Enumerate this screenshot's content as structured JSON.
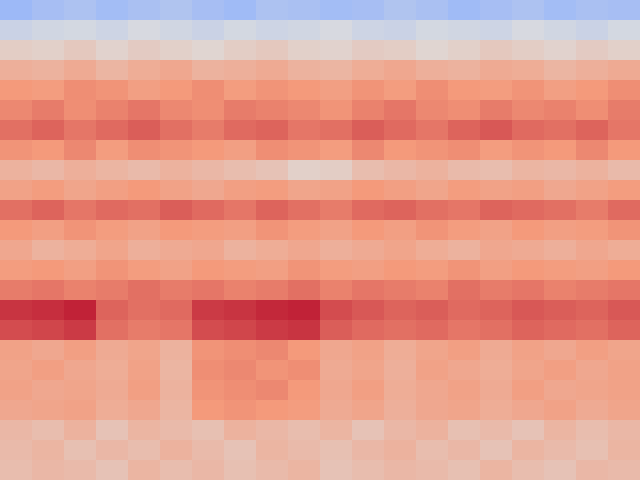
{
  "chart_data": {
    "type": "heatmap",
    "tick_labels": false,
    "color_range": [
      0,
      1
    ],
    "cells": [
      [
        0.3,
        0.33,
        0.35,
        0.32,
        0.34,
        0.36,
        0.33,
        0.31,
        0.35,
        0.34,
        0.32,
        0.33,
        0.36,
        0.34,
        0.31,
        0.33,
        0.35,
        0.32,
        0.34,
        0.33
      ],
      [
        0.44,
        0.46,
        0.47,
        0.45,
        0.48,
        0.46,
        0.44,
        0.47,
        0.45,
        0.46,
        0.48,
        0.45,
        0.44,
        0.47,
        0.46,
        0.45,
        0.48,
        0.46,
        0.44,
        0.47
      ],
      [
        0.56,
        0.55,
        0.58,
        0.54,
        0.57,
        0.55,
        0.53,
        0.56,
        0.58,
        0.55,
        0.54,
        0.57,
        0.56,
        0.53,
        0.55,
        0.58,
        0.56,
        0.54,
        0.57,
        0.55
      ],
      [
        0.67,
        0.66,
        0.69,
        0.65,
        0.68,
        0.7,
        0.66,
        0.67,
        0.69,
        0.66,
        0.65,
        0.68,
        0.7,
        0.67,
        0.66,
        0.69,
        0.68,
        0.65,
        0.67,
        0.69
      ],
      [
        0.75,
        0.74,
        0.77,
        0.76,
        0.73,
        0.75,
        0.77,
        0.74,
        0.76,
        0.75,
        0.73,
        0.76,
        0.74,
        0.77,
        0.75,
        0.74,
        0.76,
        0.73,
        0.75,
        0.77
      ],
      [
        0.78,
        0.8,
        0.77,
        0.79,
        0.81,
        0.78,
        0.77,
        0.8,
        0.79,
        0.78,
        0.76,
        0.79,
        0.81,
        0.78,
        0.77,
        0.8,
        0.78,
        0.79,
        0.77,
        0.8
      ],
      [
        0.82,
        0.84,
        0.81,
        0.83,
        0.85,
        0.82,
        0.8,
        0.83,
        0.84,
        0.81,
        0.82,
        0.85,
        0.83,
        0.81,
        0.84,
        0.86,
        0.83,
        0.82,
        0.84,
        0.81
      ],
      [
        0.76,
        0.75,
        0.78,
        0.74,
        0.77,
        0.76,
        0.75,
        0.73,
        0.77,
        0.76,
        0.74,
        0.78,
        0.75,
        0.76,
        0.77,
        0.74,
        0.76,
        0.75,
        0.78,
        0.75
      ],
      [
        0.66,
        0.64,
        0.67,
        0.65,
        0.63,
        0.66,
        0.64,
        0.62,
        0.6,
        0.55,
        0.56,
        0.62,
        0.64,
        0.66,
        0.63,
        0.62,
        0.65,
        0.64,
        0.66,
        0.63
      ],
      [
        0.72,
        0.74,
        0.71,
        0.73,
        0.75,
        0.72,
        0.7,
        0.73,
        0.74,
        0.71,
        0.72,
        0.75,
        0.73,
        0.71,
        0.74,
        0.72,
        0.73,
        0.7,
        0.72,
        0.74
      ],
      [
        0.82,
        0.84,
        0.81,
        0.83,
        0.82,
        0.85,
        0.83,
        0.81,
        0.84,
        0.82,
        0.8,
        0.83,
        0.84,
        0.82,
        0.81,
        0.84,
        0.83,
        0.82,
        0.8,
        0.83
      ],
      [
        0.75,
        0.73,
        0.76,
        0.74,
        0.72,
        0.75,
        0.74,
        0.73,
        0.76,
        0.74,
        0.72,
        0.75,
        0.73,
        0.76,
        0.74,
        0.72,
        0.75,
        0.73,
        0.74,
        0.76
      ],
      [
        0.7,
        0.66,
        0.68,
        0.71,
        0.67,
        0.69,
        0.7,
        0.66,
        0.68,
        0.7,
        0.67,
        0.69,
        0.71,
        0.68,
        0.66,
        0.7,
        0.69,
        0.67,
        0.7,
        0.68
      ],
      [
        0.74,
        0.75,
        0.73,
        0.76,
        0.74,
        0.72,
        0.75,
        0.74,
        0.73,
        0.76,
        0.74,
        0.73,
        0.75,
        0.74,
        0.76,
        0.73,
        0.75,
        0.74,
        0.73,
        0.75
      ],
      [
        0.8,
        0.81,
        0.79,
        0.8,
        0.82,
        0.8,
        0.81,
        0.79,
        0.8,
        0.82,
        0.79,
        0.81,
        0.8,
        0.79,
        0.82,
        0.8,
        0.81,
        0.79,
        0.8,
        0.81
      ],
      [
        0.92,
        0.93,
        0.95,
        0.84,
        0.82,
        0.83,
        0.91,
        0.92,
        0.94,
        0.95,
        0.88,
        0.86,
        0.84,
        0.85,
        0.83,
        0.84,
        0.86,
        0.85,
        0.84,
        0.86
      ],
      [
        0.88,
        0.89,
        0.91,
        0.82,
        0.8,
        0.81,
        0.88,
        0.89,
        0.91,
        0.92,
        0.85,
        0.83,
        0.82,
        0.83,
        0.81,
        0.82,
        0.84,
        0.83,
        0.82,
        0.84
      ],
      [
        0.72,
        0.7,
        0.73,
        0.69,
        0.71,
        0.66,
        0.76,
        0.77,
        0.78,
        0.75,
        0.7,
        0.72,
        0.68,
        0.71,
        0.73,
        0.69,
        0.72,
        0.7,
        0.73,
        0.71
      ],
      [
        0.71,
        0.73,
        0.7,
        0.68,
        0.72,
        0.65,
        0.77,
        0.78,
        0.76,
        0.77,
        0.69,
        0.71,
        0.67,
        0.72,
        0.7,
        0.68,
        0.71,
        0.73,
        0.7,
        0.72
      ],
      [
        0.72,
        0.7,
        0.71,
        0.69,
        0.73,
        0.66,
        0.76,
        0.77,
        0.78,
        0.75,
        0.7,
        0.73,
        0.68,
        0.7,
        0.72,
        0.69,
        0.73,
        0.7,
        0.71,
        0.72
      ],
      [
        0.7,
        0.71,
        0.72,
        0.68,
        0.7,
        0.65,
        0.75,
        0.76,
        0.75,
        0.74,
        0.69,
        0.71,
        0.67,
        0.7,
        0.71,
        0.68,
        0.7,
        0.72,
        0.69,
        0.71
      ],
      [
        0.64,
        0.62,
        0.66,
        0.6,
        0.65,
        0.63,
        0.61,
        0.66,
        0.64,
        0.62,
        0.65,
        0.6,
        0.64,
        0.66,
        0.61,
        0.63,
        0.6,
        0.65,
        0.62,
        0.64
      ],
      [
        0.63,
        0.65,
        0.61,
        0.64,
        0.62,
        0.66,
        0.63,
        0.6,
        0.65,
        0.63,
        0.61,
        0.64,
        0.66,
        0.62,
        0.64,
        0.6,
        0.65,
        0.63,
        0.61,
        0.65
      ],
      [
        0.62,
        0.64,
        0.63,
        0.6,
        0.65,
        0.62,
        0.64,
        0.61,
        0.63,
        0.65,
        0.6,
        0.62,
        0.64,
        0.63,
        0.61,
        0.65,
        0.62,
        0.6,
        0.64,
        0.63
      ]
    ]
  }
}
